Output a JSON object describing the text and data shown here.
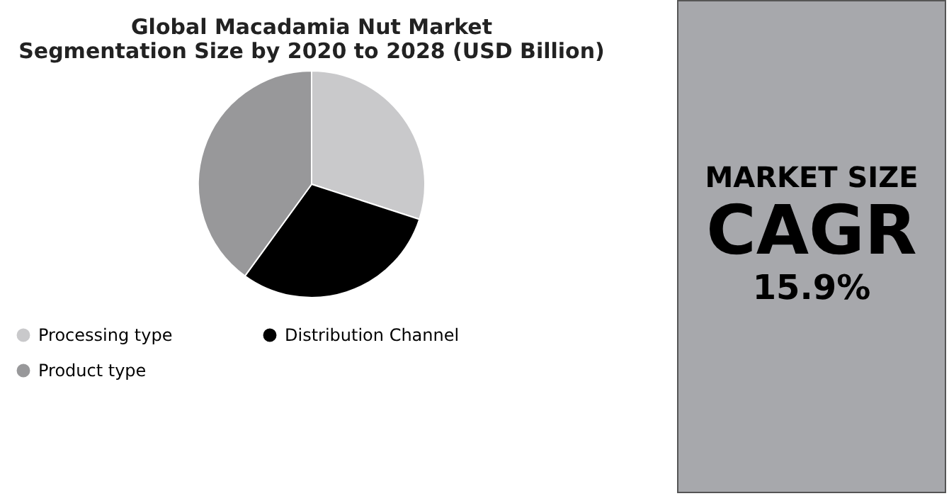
{
  "chart_data": [
    {
      "type": "pie",
      "title": "Global Macadamia Nut Market\nSegmentation Size by 2020 to 2028 (USD Billion)",
      "categories": [
        "Processing type",
        "Distribution Channel",
        "Product type"
      ],
      "values": [
        30,
        30,
        40
      ],
      "colors": [
        "#c9c9cb",
        "#000000",
        "#98989a"
      ],
      "legend": "bottom"
    },
    {
      "type": "other",
      "annotations": [
        "MARKET SIZE",
        "CAGR",
        "15.9%"
      ]
    }
  ]
}
